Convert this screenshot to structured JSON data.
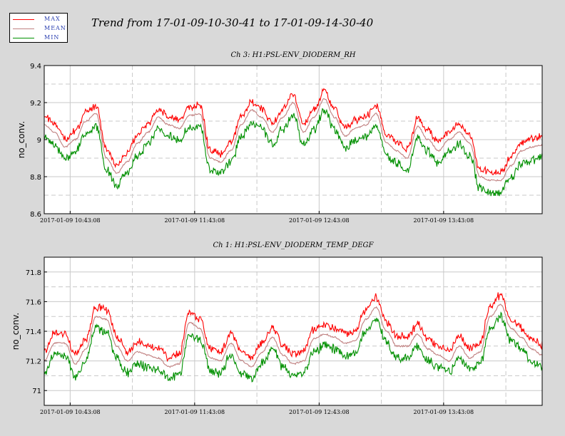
{
  "title": "Trend from 17-01-09-10-30-41 to 17-01-09-14-30-40",
  "legend": [
    {
      "label": "MAX",
      "color": "#ff0000"
    },
    {
      "label": "MEAN",
      "color": "#c08080"
    },
    {
      "label": "MIN",
      "color": "#009000"
    }
  ],
  "chart_data": [
    {
      "type": "line",
      "title": "Ch 3: H1:PSL-ENV_DIODERM_RH",
      "ylabel": "no_conv.",
      "ylim": [
        8.6,
        9.4
      ],
      "yticks": [
        8.6,
        8.8,
        9,
        9.2,
        9.4
      ],
      "xlim": [
        0,
        240
      ],
      "xticks": [
        {
          "value": 12.5,
          "label": "2017-01-09 10:43:08"
        },
        {
          "value": 72.5,
          "label": "2017-01-09 11:43:08"
        },
        {
          "value": 132.5,
          "label": "2017-01-09 12:43:08"
        },
        {
          "value": 192.5,
          "label": "2017-01-09 13:43:08"
        }
      ],
      "grid": true,
      "spread_upper": 0.045,
      "spread_lower": 0.065,
      "noise": 0.02,
      "x": [
        0,
        5,
        10,
        15,
        20,
        25,
        30,
        35,
        40,
        45,
        50,
        55,
        60,
        65,
        70,
        75,
        80,
        85,
        90,
        95,
        100,
        105,
        110,
        115,
        120,
        125,
        130,
        135,
        140,
        145,
        150,
        155,
        160,
        165,
        170,
        175,
        180,
        185,
        190,
        195,
        200,
        205,
        210,
        215,
        220,
        225,
        230,
        235,
        240
      ],
      "mean": [
        9.08,
        9.04,
        8.96,
        9.0,
        9.1,
        9.14,
        8.9,
        8.82,
        8.88,
        8.98,
        9.04,
        9.12,
        9.08,
        9.06,
        9.13,
        9.14,
        8.9,
        8.88,
        8.94,
        9.08,
        9.16,
        9.12,
        9.04,
        9.12,
        9.2,
        9.04,
        9.12,
        9.22,
        9.12,
        9.02,
        9.06,
        9.08,
        9.14,
        8.98,
        8.94,
        8.9,
        9.07,
        9.0,
        8.94,
        9.0,
        9.04,
        8.98,
        8.8,
        8.78,
        8.78,
        8.86,
        8.94,
        8.96,
        8.97
      ],
      "series": [
        {
          "name": "MAX",
          "color": "#ff0000"
        },
        {
          "name": "MEAN",
          "color": "#c08080"
        },
        {
          "name": "MIN",
          "color": "#009000"
        }
      ]
    },
    {
      "type": "line",
      "title": "Ch 1: H1:PSL-ENV_DIODERM_TEMP_DEGF",
      "ylabel": "no_conv.",
      "ylim": [
        70.9,
        71.9
      ],
      "yticks": [
        71,
        71.2,
        71.4,
        71.6,
        71.8
      ],
      "xlim": [
        0,
        240
      ],
      "xticks": [
        {
          "value": 12.5,
          "label": "2017-01-09 10:43:08"
        },
        {
          "value": 72.5,
          "label": "2017-01-09 11:43:08"
        },
        {
          "value": 132.5,
          "label": "2017-01-09 12:43:08"
        },
        {
          "value": 192.5,
          "label": "2017-01-09 13:43:08"
        }
      ],
      "grid": true,
      "spread_upper": 0.065,
      "spread_lower": 0.08,
      "noise": 0.025,
      "x": [
        0,
        5,
        10,
        15,
        20,
        25,
        30,
        35,
        40,
        45,
        50,
        55,
        60,
        65,
        70,
        75,
        80,
        85,
        90,
        95,
        100,
        105,
        110,
        115,
        120,
        125,
        130,
        135,
        140,
        145,
        150,
        155,
        160,
        165,
        170,
        175,
        180,
        185,
        190,
        195,
        200,
        205,
        210,
        215,
        220,
        225,
        230,
        235,
        240
      ],
      "mean": [
        71.2,
        71.32,
        71.32,
        71.18,
        71.28,
        71.5,
        71.48,
        71.3,
        71.2,
        71.26,
        71.24,
        71.22,
        71.16,
        71.18,
        71.46,
        71.42,
        71.22,
        71.2,
        71.32,
        71.2,
        71.16,
        71.26,
        71.36,
        71.24,
        71.18,
        71.2,
        71.35,
        71.38,
        71.36,
        71.32,
        71.34,
        71.48,
        71.56,
        71.4,
        71.3,
        71.3,
        71.38,
        71.28,
        71.24,
        71.2,
        71.3,
        71.22,
        71.26,
        71.5,
        71.58,
        71.42,
        71.36,
        71.28,
        71.24
      ],
      "series": [
        {
          "name": "MAX",
          "color": "#ff0000"
        },
        {
          "name": "MEAN",
          "color": "#c08080"
        },
        {
          "name": "MIN",
          "color": "#009000"
        }
      ]
    }
  ]
}
